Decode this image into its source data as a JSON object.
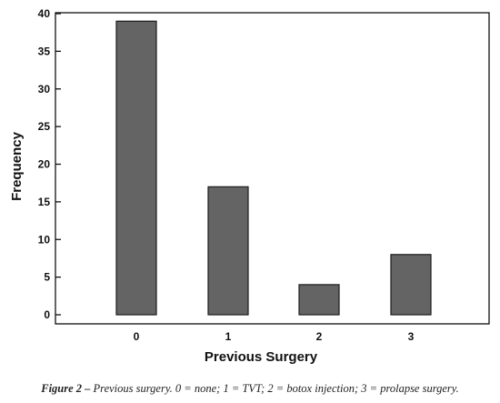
{
  "chart_data": {
    "type": "bar",
    "categories": [
      "0",
      "1",
      "2",
      "3"
    ],
    "values": [
      39,
      17,
      4,
      8
    ],
    "xlabel": "Previous Surgery",
    "ylabel": "Frequency",
    "ylim": [
      0,
      40
    ],
    "yticks": [
      0,
      5,
      10,
      15,
      20,
      25,
      30,
      35,
      40
    ],
    "bar_color": "#646464",
    "grid": false
  },
  "caption": {
    "lead": "Figure 2 –",
    "text": " Previous surgery. 0 = none; 1 = TVT; 2 = botox injection; 3 = prolapse surgery."
  }
}
